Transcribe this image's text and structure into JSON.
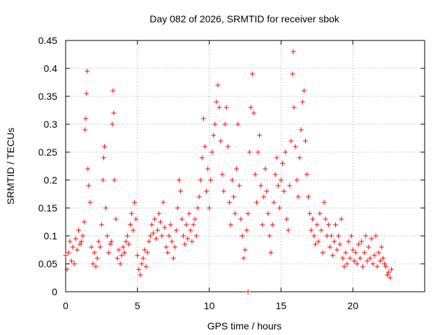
{
  "chart_data": {
    "type": "scatter",
    "title": "Day 082 of 2026, SRMTID for receiver sbok",
    "xlabel": "GPS time / hours",
    "ylabel": "SRMTID / TECUs",
    "xlim": [
      0,
      25
    ],
    "ylim": [
      0,
      0.45
    ],
    "x_ticks": [
      0,
      5,
      10,
      15,
      20
    ],
    "x_tick_labels": [
      "0",
      "5",
      "10",
      "15",
      "20"
    ],
    "y_ticks": [
      0,
      0.05,
      0.1,
      0.15,
      0.2,
      0.25,
      0.3,
      0.35,
      0.4,
      0.45
    ],
    "y_tick_labels": [
      "0",
      "0.05",
      "0.1",
      "0.15",
      "0.2",
      "0.25",
      "0.3",
      "0.35",
      "0.4",
      "0.45"
    ],
    "grid": true,
    "marker": "+",
    "marker_color": "#ff0000",
    "series": [
      {
        "name": "SRMTID",
        "points": [
          [
            0.0,
            0.065
          ],
          [
            0.1,
            0.04
          ],
          [
            0.2,
            0.07
          ],
          [
            0.3,
            0.09
          ],
          [
            0.4,
            0.055
          ],
          [
            0.5,
            0.08
          ],
          [
            0.6,
            0.05
          ],
          [
            0.7,
            0.095
          ],
          [
            0.8,
            0.075
          ],
          [
            0.9,
            0.11
          ],
          [
            1.0,
            0.085
          ],
          [
            1.1,
            0.09
          ],
          [
            1.2,
            0.1
          ],
          [
            1.3,
            0.125
          ],
          [
            1.35,
            0.29
          ],
          [
            1.4,
            0.31
          ],
          [
            1.45,
            0.355
          ],
          [
            1.5,
            0.395
          ],
          [
            1.55,
            0.22
          ],
          [
            1.6,
            0.19
          ],
          [
            1.7,
            0.16
          ],
          [
            1.8,
            0.08
          ],
          [
            1.9,
            0.05
          ],
          [
            2.0,
            0.07
          ],
          [
            2.1,
            0.045
          ],
          [
            2.2,
            0.06
          ],
          [
            2.3,
            0.09
          ],
          [
            2.4,
            0.08
          ],
          [
            2.5,
            0.12
          ],
          [
            2.6,
            0.2
          ],
          [
            2.65,
            0.24
          ],
          [
            2.7,
            0.26
          ],
          [
            2.8,
            0.15
          ],
          [
            2.9,
            0.1
          ],
          [
            3.0,
            0.07
          ],
          [
            3.1,
            0.085
          ],
          [
            3.2,
            0.09
          ],
          [
            3.25,
            0.3
          ],
          [
            3.3,
            0.36
          ],
          [
            3.35,
            0.32
          ],
          [
            3.4,
            0.2
          ],
          [
            3.5,
            0.13
          ],
          [
            3.6,
            0.06
          ],
          [
            3.7,
            0.075
          ],
          [
            3.8,
            0.05
          ],
          [
            3.9,
            0.065
          ],
          [
            4.0,
            0.08
          ],
          [
            4.1,
            0.07
          ],
          [
            4.2,
            0.09
          ],
          [
            4.3,
            0.1
          ],
          [
            4.4,
            0.085
          ],
          [
            4.5,
            0.12
          ],
          [
            4.6,
            0.14
          ],
          [
            4.7,
            0.11
          ],
          [
            4.8,
            0.16
          ],
          [
            4.9,
            0.13
          ],
          [
            5.0,
            0.065
          ],
          [
            5.1,
            0.04
          ],
          [
            5.2,
            0.03
          ],
          [
            5.3,
            0.05
          ],
          [
            5.4,
            0.06
          ],
          [
            5.5,
            0.075
          ],
          [
            5.6,
            0.045
          ],
          [
            5.7,
            0.07
          ],
          [
            5.8,
            0.09
          ],
          [
            5.9,
            0.1
          ],
          [
            6.0,
            0.12
          ],
          [
            6.1,
            0.105
          ],
          [
            6.2,
            0.13
          ],
          [
            6.3,
            0.095
          ],
          [
            6.4,
            0.11
          ],
          [
            6.5,
            0.14
          ],
          [
            6.6,
            0.125
          ],
          [
            6.7,
            0.1
          ],
          [
            6.8,
            0.16
          ],
          [
            6.9,
            0.115
          ],
          [
            7.0,
            0.08
          ],
          [
            7.1,
            0.07
          ],
          [
            7.2,
            0.1
          ],
          [
            7.3,
            0.12
          ],
          [
            7.4,
            0.09
          ],
          [
            7.5,
            0.06
          ],
          [
            7.6,
            0.08
          ],
          [
            7.7,
            0.11
          ],
          [
            7.8,
            0.15
          ],
          [
            7.9,
            0.2
          ],
          [
            8.0,
            0.18
          ],
          [
            8.1,
            0.13
          ],
          [
            8.2,
            0.1
          ],
          [
            8.3,
            0.085
          ],
          [
            8.4,
            0.12
          ],
          [
            8.5,
            0.095
          ],
          [
            8.6,
            0.14
          ],
          [
            8.7,
            0.11
          ],
          [
            8.8,
            0.09
          ],
          [
            8.9,
            0.12
          ],
          [
            9.0,
            0.13
          ],
          [
            9.1,
            0.1
          ],
          [
            9.2,
            0.15
          ],
          [
            9.3,
            0.17
          ],
          [
            9.4,
            0.2
          ],
          [
            9.5,
            0.24
          ],
          [
            9.6,
            0.31
          ],
          [
            9.7,
            0.26
          ],
          [
            9.8,
            0.18
          ],
          [
            9.9,
            0.22
          ],
          [
            10.0,
            0.15
          ],
          [
            10.1,
            0.2
          ],
          [
            10.2,
            0.25
          ],
          [
            10.3,
            0.28
          ],
          [
            10.4,
            0.3
          ],
          [
            10.5,
            0.34
          ],
          [
            10.6,
            0.37
          ],
          [
            10.7,
            0.33
          ],
          [
            10.8,
            0.27
          ],
          [
            10.9,
            0.21
          ],
          [
            11.0,
            0.18
          ],
          [
            11.1,
            0.3
          ],
          [
            11.2,
            0.33
          ],
          [
            11.3,
            0.26
          ],
          [
            11.4,
            0.16
          ],
          [
            11.5,
            0.12
          ],
          [
            11.6,
            0.2
          ],
          [
            11.7,
            0.17
          ],
          [
            11.8,
            0.14
          ],
          [
            11.9,
            0.22
          ],
          [
            12.0,
            0.3
          ],
          [
            12.1,
            0.19
          ],
          [
            12.2,
            0.13
          ],
          [
            12.3,
            0.1
          ],
          [
            12.4,
            0.06
          ],
          [
            12.5,
            0.075
          ],
          [
            12.6,
            0.11
          ],
          [
            12.7,
            0.14
          ],
          [
            12.8,
            0.25
          ],
          [
            12.9,
            0.33
          ],
          [
            13.0,
            0.39
          ],
          [
            13.1,
            0.32
          ],
          [
            13.2,
            0.21
          ],
          [
            13.3,
            0.16
          ],
          [
            13.4,
            0.25
          ],
          [
            13.5,
            0.28
          ],
          [
            13.6,
            0.19
          ],
          [
            13.7,
            0.12
          ],
          [
            13.8,
            0.17
          ],
          [
            13.9,
            0.22
          ],
          [
            14.0,
            0.18
          ],
          [
            14.1,
            0.14
          ],
          [
            14.2,
            0.1
          ],
          [
            14.3,
            0.07
          ],
          [
            14.4,
            0.12
          ],
          [
            14.5,
            0.16
          ],
          [
            14.6,
            0.21
          ],
          [
            14.7,
            0.24
          ],
          [
            14.8,
            0.19
          ],
          [
            14.9,
            0.15
          ],
          [
            15.0,
            0.2
          ],
          [
            15.1,
            0.23
          ],
          [
            15.2,
            0.18
          ],
          [
            15.3,
            0.25
          ],
          [
            15.4,
            0.13
          ],
          [
            15.5,
            0.11
          ],
          [
            15.6,
            0.19
          ],
          [
            15.7,
            0.27
          ],
          [
            15.8,
            0.39
          ],
          [
            15.85,
            0.43
          ],
          [
            15.9,
            0.33
          ],
          [
            16.0,
            0.26
          ],
          [
            16.1,
            0.2
          ],
          [
            16.2,
            0.17
          ],
          [
            16.3,
            0.24
          ],
          [
            16.4,
            0.29
          ],
          [
            16.5,
            0.34
          ],
          [
            16.6,
            0.36
          ],
          [
            16.7,
            0.27
          ],
          [
            16.8,
            0.21
          ],
          [
            16.9,
            0.17
          ],
          [
            17.0,
            0.14
          ],
          [
            17.1,
            0.11
          ],
          [
            17.2,
            0.13
          ],
          [
            17.3,
            0.1
          ],
          [
            17.4,
            0.085
          ],
          [
            17.5,
            0.12
          ],
          [
            17.6,
            0.09
          ],
          [
            17.7,
            0.14
          ],
          [
            17.8,
            0.11
          ],
          [
            17.9,
            0.07
          ],
          [
            18.0,
            0.16
          ],
          [
            18.1,
            0.13
          ],
          [
            18.2,
            0.1
          ],
          [
            18.3,
            0.12
          ],
          [
            18.4,
            0.08
          ],
          [
            18.5,
            0.1
          ],
          [
            18.6,
            0.065
          ],
          [
            18.7,
            0.09
          ],
          [
            18.8,
            0.12
          ],
          [
            18.9,
            0.075
          ],
          [
            19.0,
            0.1
          ],
          [
            19.1,
            0.085
          ],
          [
            19.2,
            0.13
          ],
          [
            19.3,
            0.06
          ],
          [
            19.4,
            0.045
          ],
          [
            19.5,
            0.07
          ],
          [
            19.6,
            0.05
          ],
          [
            19.7,
            0.09
          ],
          [
            19.8,
            0.06
          ],
          [
            19.9,
            0.1
          ],
          [
            20.0,
            0.075
          ],
          [
            20.1,
            0.055
          ],
          [
            20.2,
            0.07
          ],
          [
            20.3,
            0.05
          ],
          [
            20.4,
            0.085
          ],
          [
            20.5,
            0.06
          ],
          [
            20.6,
            0.09
          ],
          [
            20.7,
            0.045
          ],
          [
            20.8,
            0.07
          ],
          [
            20.9,
            0.1
          ],
          [
            21.0,
            0.055
          ],
          [
            21.1,
            0.08
          ],
          [
            21.2,
            0.06
          ],
          [
            21.3,
            0.095
          ],
          [
            21.4,
            0.05
          ],
          [
            21.5,
            0.065
          ],
          [
            21.6,
            0.1
          ],
          [
            21.7,
            0.045
          ],
          [
            21.8,
            0.07
          ],
          [
            21.9,
            0.055
          ],
          [
            22.0,
            0.08
          ],
          [
            22.1,
            0.06
          ],
          [
            22.2,
            0.05
          ],
          [
            22.3,
            0.045
          ],
          [
            22.4,
            0.03
          ],
          [
            22.5,
            0.035
          ],
          [
            22.6,
            0.025
          ],
          [
            22.7,
            0.04
          ],
          [
            12.7,
            0.0
          ]
        ]
      }
    ]
  }
}
